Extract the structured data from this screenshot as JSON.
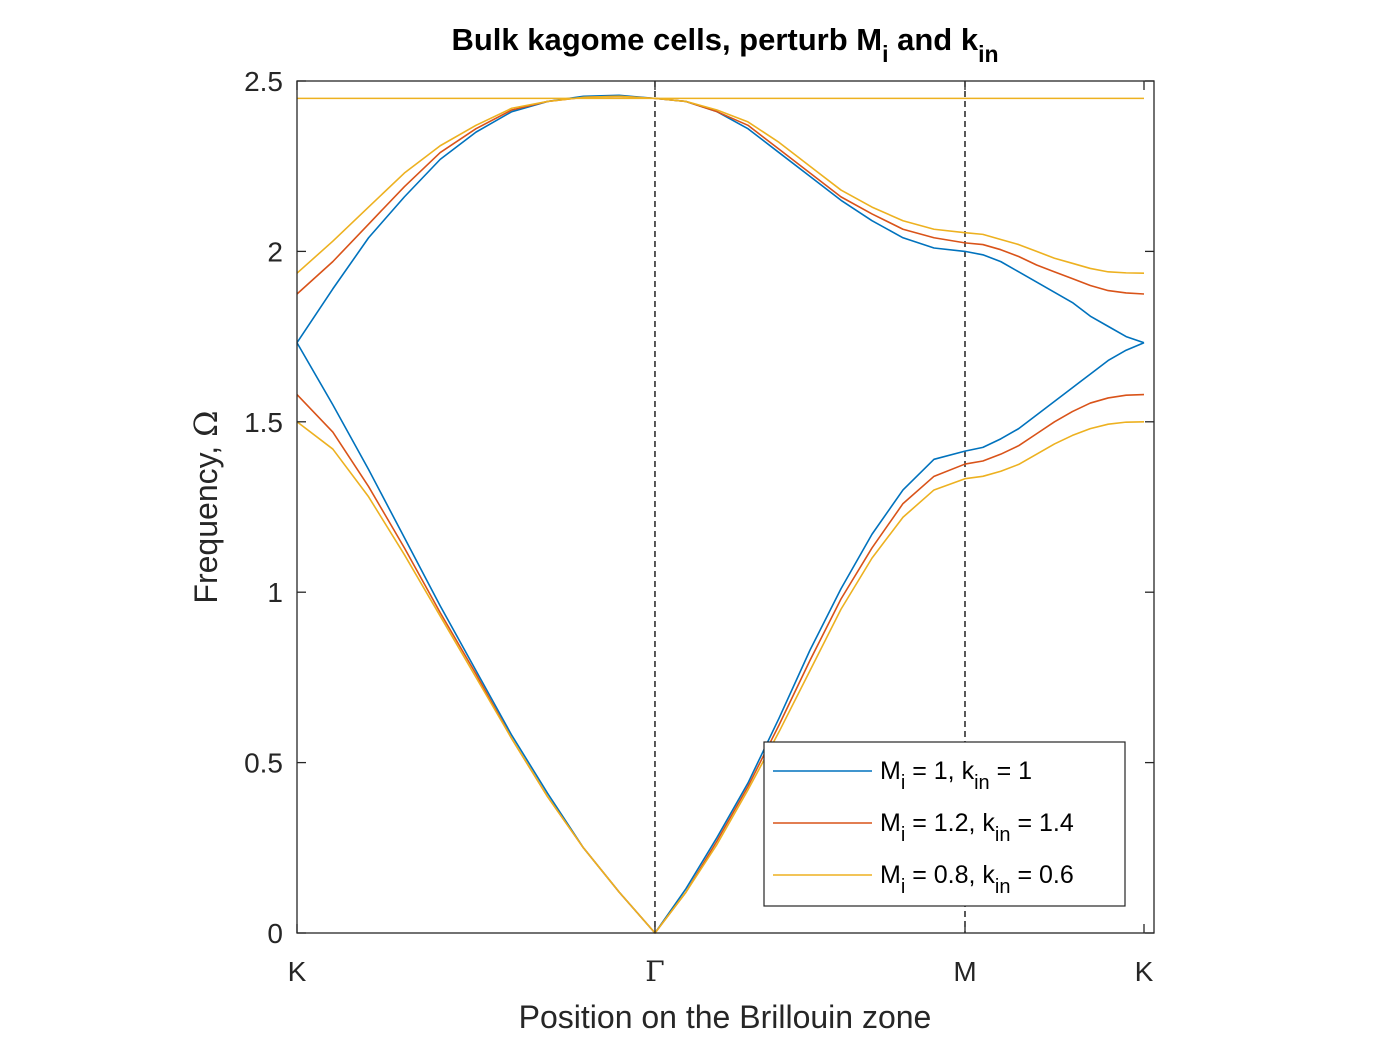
{
  "chart_data": {
    "type": "line",
    "title": {
      "main": "Bulk kagome cells, perturb M",
      "sub1": "i",
      "mid": " and k",
      "sub2": "in"
    },
    "xlabel": "Position on the Brillouin zone",
    "ylabel": {
      "text": "Frequency, ",
      "symbol": "Ω"
    },
    "ylim": [
      0,
      2.5
    ],
    "yticks": [
      {
        "value": 0,
        "label": "0"
      },
      {
        "value": 0.5,
        "label": "0.5"
      },
      {
        "value": 1,
        "label": "1"
      },
      {
        "value": 1.5,
        "label": "1.5"
      },
      {
        "value": 2,
        "label": "2"
      },
      {
        "value": 2.5,
        "label": "2.5"
      }
    ],
    "xticks": [
      {
        "value": 0,
        "label": "K"
      },
      {
        "value": 1.1547,
        "label": "Γ"
      },
      {
        "value": 2.1547,
        "label": "M"
      },
      {
        "value": 2.7321,
        "label": "K"
      }
    ],
    "xlim": [
      0,
      2.7321
    ],
    "vlines": [
      1.1547,
      2.1547
    ],
    "legend_position": "bottom-right",
    "series": [
      {
        "label": {
          "a": "M",
          "b": "i",
          "c": " = 1, k",
          "d": "in",
          "e": " = 1"
        },
        "color": "#0072BD",
        "points": {
          "x": [
            0,
            0.1155,
            0.2309,
            0.3464,
            0.4619,
            0.5774,
            0.6928,
            0.8083,
            0.9238,
            1.0392,
            1.1547,
            1.2547,
            1.3547,
            1.4547,
            1.5547,
            1.6547,
            1.7547,
            1.8547,
            1.9547,
            2.0547,
            2.1547,
            2.2124,
            2.2702,
            2.3279,
            2.3857,
            2.4434,
            2.5011,
            2.5589,
            2.6166,
            2.6744,
            2.7321
          ],
          "bands": [
            [
              1.732,
              1.55,
              1.36,
              1.16,
              0.96,
              0.77,
              0.58,
              0.41,
              0.25,
              0.12,
              0.0,
              0.13,
              0.28,
              0.44,
              0.63,
              0.83,
              1.01,
              1.17,
              1.3,
              1.39,
              1.414,
              1.425,
              1.45,
              1.48,
              1.52,
              1.56,
              1.6,
              1.64,
              1.68,
              1.71,
              1.732
            ],
            [
              1.732,
              1.89,
              2.04,
              2.16,
              2.27,
              2.35,
              2.41,
              2.44,
              2.455,
              2.458,
              2.449,
              2.44,
              2.41,
              2.36,
              2.29,
              2.22,
              2.15,
              2.09,
              2.04,
              2.01,
              2.0,
              1.99,
              1.97,
              1.94,
              1.91,
              1.88,
              1.85,
              1.81,
              1.78,
              1.75,
              1.732
            ]
          ]
        }
      },
      {
        "label": {
          "a": "M",
          "b": "i",
          "c": " = 1.2, k",
          "d": "in",
          "e": " = 1.4"
        },
        "color": "#D95319",
        "points": {
          "x": [
            0,
            0.1155,
            0.2309,
            0.3464,
            0.4619,
            0.5774,
            0.6928,
            0.8083,
            0.9238,
            1.0392,
            1.1547,
            1.2547,
            1.3547,
            1.4547,
            1.5547,
            1.6547,
            1.7547,
            1.8547,
            1.9547,
            2.0547,
            2.1547,
            2.2124,
            2.2702,
            2.3279,
            2.3857,
            2.4434,
            2.5011,
            2.5589,
            2.6166,
            2.6744,
            2.7321
          ],
          "bands": [
            [
              1.58,
              1.47,
              1.31,
              1.13,
              0.94,
              0.76,
              0.57,
              0.4,
              0.25,
              0.12,
              0.0,
              0.12,
              0.27,
              0.43,
              0.61,
              0.8,
              0.98,
              1.13,
              1.26,
              1.34,
              1.376,
              1.385,
              1.405,
              1.43,
              1.465,
              1.5,
              1.53,
              1.555,
              1.57,
              1.578,
              1.58
            ],
            [
              1.875,
              1.97,
              2.08,
              2.19,
              2.29,
              2.36,
              2.415,
              2.44,
              2.452,
              2.455,
              2.449,
              2.44,
              2.41,
              2.37,
              2.3,
              2.23,
              2.16,
              2.11,
              2.065,
              2.04,
              2.025,
              2.02,
              2.005,
              1.985,
              1.96,
              1.94,
              1.92,
              1.9,
              1.885,
              1.878,
              1.875
            ]
          ]
        }
      },
      {
        "label": {
          "a": "M",
          "b": "i",
          "c": " = 0.8, k",
          "d": "in",
          "e": " = 0.6"
        },
        "color": "#EDB120",
        "points": {
          "x": [
            0,
            0.1155,
            0.2309,
            0.3464,
            0.4619,
            0.5774,
            0.6928,
            0.8083,
            0.9238,
            1.0392,
            1.1547,
            1.2547,
            1.3547,
            1.4547,
            1.5547,
            1.6547,
            1.7547,
            1.8547,
            1.9547,
            2.0547,
            2.1547,
            2.2124,
            2.2702,
            2.3279,
            2.3857,
            2.4434,
            2.5011,
            2.5589,
            2.6166,
            2.6744,
            2.7321
          ],
          "bands": [
            [
              1.5,
              1.42,
              1.28,
              1.11,
              0.93,
              0.75,
              0.57,
              0.4,
              0.25,
              0.12,
              0.0,
              0.12,
              0.26,
              0.42,
              0.59,
              0.77,
              0.95,
              1.1,
              1.22,
              1.3,
              1.333,
              1.34,
              1.355,
              1.375,
              1.405,
              1.435,
              1.46,
              1.48,
              1.493,
              1.499,
              1.5
            ],
            [
              1.936,
              2.03,
              2.13,
              2.23,
              2.31,
              2.37,
              2.42,
              2.44,
              2.452,
              2.455,
              2.449,
              2.44,
              2.415,
              2.38,
              2.32,
              2.25,
              2.18,
              2.13,
              2.09,
              2.065,
              2.055,
              2.05,
              2.035,
              2.02,
              2.0,
              1.98,
              1.965,
              1.95,
              1.94,
              1.937,
              1.936
            ],
            [
              2.449,
              2.449,
              2.449,
              2.449,
              2.449,
              2.449,
              2.449,
              2.449,
              2.449,
              2.449,
              2.449,
              2.449,
              2.449,
              2.449,
              2.449,
              2.449,
              2.449,
              2.449,
              2.449,
              2.449,
              2.449,
              2.449,
              2.449,
              2.449,
              2.449,
              2.449,
              2.449,
              2.449,
              2.449,
              2.449,
              2.449
            ]
          ]
        }
      }
    ]
  }
}
